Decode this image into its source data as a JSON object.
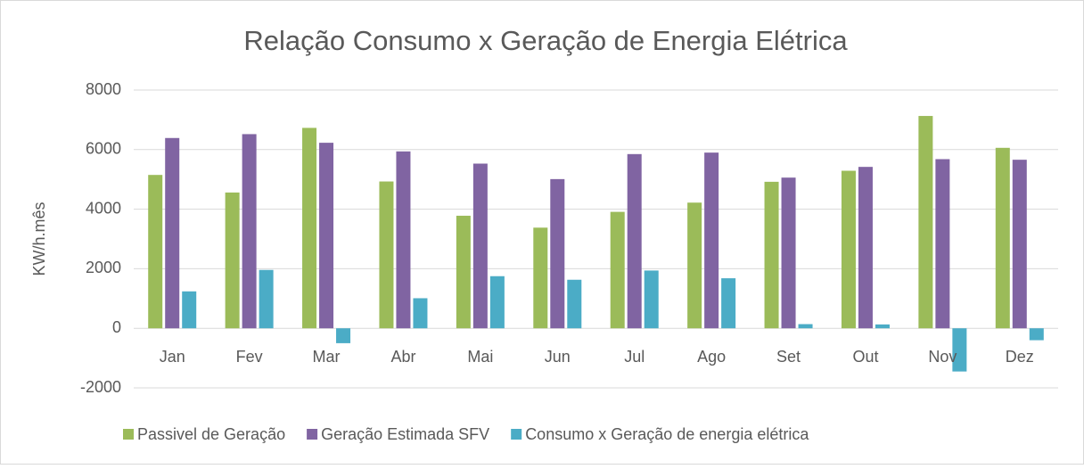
{
  "chart_data": {
    "type": "bar",
    "title": "Relação Consumo x Geração de Energia Elétrica",
    "y_label": "KW/h.mês",
    "categories": [
      "Jan",
      "Fev",
      "Mar",
      "Abr",
      "Mai",
      "Jun",
      "Jul",
      "Ago",
      "Set",
      "Out",
      "Nov",
      "Dez"
    ],
    "series": [
      {
        "name": "Passivel de Geração",
        "color": "#9bbb59",
        "values": [
          5150,
          4560,
          6730,
          4930,
          3780,
          3380,
          3910,
          4220,
          4920,
          5290,
          7130,
          6060
        ]
      },
      {
        "name": "Geração Estimada SFV",
        "color": "#8064a2",
        "values": [
          6390,
          6520,
          6230,
          5940,
          5530,
          5010,
          5850,
          5900,
          5060,
          5420,
          5680,
          5660
        ]
      },
      {
        "name": "Consumo x Geração de energia elétrica",
        "color": "#4bacc6",
        "values": [
          1240,
          1960,
          -500,
          1010,
          1750,
          1630,
          1940,
          1680,
          140,
          130,
          -1450,
          -400
        ]
      }
    ],
    "ylim": [
      -2000,
      8000
    ],
    "yticks": [
      -2000,
      0,
      2000,
      4000,
      6000,
      8000
    ],
    "grid": true,
    "legend": "bottom"
  }
}
